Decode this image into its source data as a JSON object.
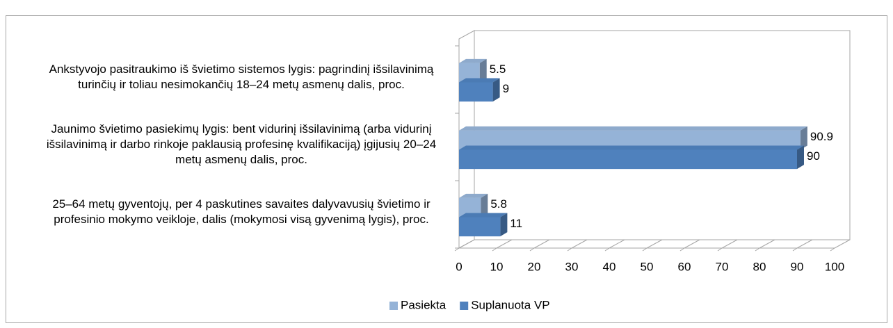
{
  "chart_data": {
    "type": "bar3d_horizontal",
    "categories": [
      "Ankstyvojo pasitraukimo iš švietimo sistemos lygis: pagrindinį išsilavinimą turinčių ir toliau nesimokančių 18–24 metų asmenų dalis, proc.",
      "Jaunimo švietimo pasiekimų lygis: bent vidurinį išsilavinimą (arba vidurinį išsilavinimą ir darbo rinkoje paklausią profesinę kvalifikaciją) įgijusių 20–24 metų asmenų dalis, proc.",
      "25–64 metų gyventojų, per 4 paskutines savaites dalyvavusių švietimo ir profesinio mokymo veikloje, dalis (mokymosi visą gyvenimą lygis), proc."
    ],
    "series": [
      {
        "name": "Pasiekta",
        "color": "#95b3d7",
        "values": [
          5.5,
          90.9,
          5.8
        ]
      },
      {
        "name": "Suplanuota VP",
        "color": "#4f81bd",
        "values": [
          9,
          90,
          11
        ]
      }
    ],
    "xlim": [
      0,
      100
    ],
    "xticks": [
      0,
      10,
      20,
      30,
      40,
      50,
      60,
      70,
      80,
      90,
      100
    ],
    "legend": "bottom"
  }
}
